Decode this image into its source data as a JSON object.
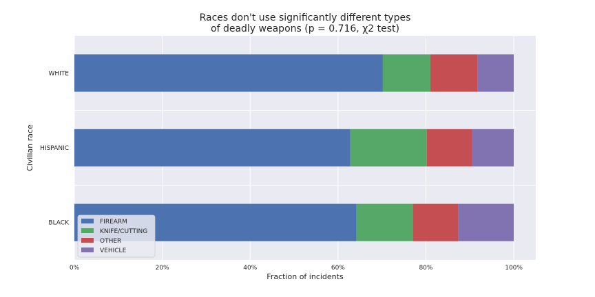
{
  "chart_data": {
    "type": "bar",
    "orientation": "horizontal",
    "stacked": true,
    "title_lines": [
      "Races don't use significantly different types",
      "of deadly weapons (p = 0.716, χ2 test)"
    ],
    "xlabel": "Fraction of incidents",
    "ylabel": "Civilian race",
    "xlim": [
      0,
      1.05
    ],
    "xticks": [
      0,
      0.2,
      0.4,
      0.6,
      0.8,
      1.0
    ],
    "xtick_labels": [
      "0%",
      "20%",
      "40%",
      "60%",
      "80%",
      "100%"
    ],
    "categories": [
      "WHITE",
      "HISPANIC",
      "BLACK"
    ],
    "series": [
      {
        "name": "FIREARM",
        "color": "#4c72b0",
        "values": [
          0.702,
          0.628,
          0.642
        ]
      },
      {
        "name": "KNIFE/CUTTING",
        "color": "#55a868",
        "values": [
          0.108,
          0.174,
          0.129
        ]
      },
      {
        "name": "OTHER",
        "color": "#c44e52",
        "values": [
          0.108,
          0.103,
          0.102
        ]
      },
      {
        "name": "VEHICLE",
        "color": "#8172b2",
        "values": [
          0.082,
          0.095,
          0.127
        ]
      }
    ],
    "grid": true,
    "legend_position": "lower-left",
    "background": "#eaeaf2"
  }
}
